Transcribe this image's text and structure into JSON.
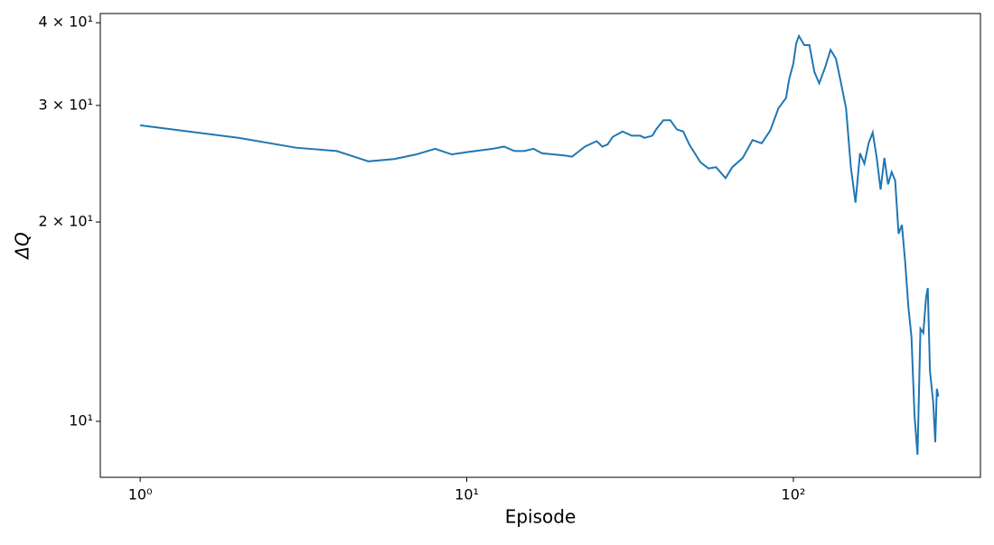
{
  "chart_data": {
    "type": "line",
    "xlabel": "Episode",
    "ylabel": "ΔQ",
    "xscale": "log",
    "yscale": "log",
    "xlim": [
      0.755,
      374
    ],
    "ylim": [
      8.23,
      41.3
    ],
    "xticks": [
      {
        "value": 1,
        "label": "10⁰"
      },
      {
        "value": 10,
        "label": "10¹"
      },
      {
        "value": 100,
        "label": "10²"
      }
    ],
    "yticks": [
      {
        "value": 10,
        "label": "10¹"
      },
      {
        "value": 20,
        "label": "2 × 10¹"
      },
      {
        "value": 30,
        "label": "3 × 10¹"
      },
      {
        "value": 40,
        "label": "4 × 10¹"
      }
    ],
    "x": [
      1,
      2,
      3,
      4,
      5,
      6,
      7,
      8,
      9,
      10,
      12,
      13,
      14,
      15,
      16,
      17,
      20,
      21,
      23,
      25,
      26,
      27,
      28,
      30,
      32,
      34,
      35,
      37,
      38,
      40,
      42,
      44,
      46,
      48,
      52,
      55,
      58,
      62,
      65,
      70,
      75,
      80,
      85,
      90,
      95,
      97,
      100,
      102,
      104,
      108,
      112,
      116,
      120,
      125,
      130,
      135,
      140,
      145,
      150,
      155,
      160,
      165,
      170,
      175,
      180,
      185,
      190,
      195,
      200,
      205,
      210,
      215,
      220,
      225,
      230,
      235,
      240,
      245,
      250,
      255,
      258,
      262,
      268,
      272,
      275,
      278
    ],
    "series": [
      {
        "color": "#1f77b4",
        "values": [
          28.0,
          26.8,
          25.9,
          25.6,
          24.7,
          24.9,
          25.3,
          25.8,
          25.3,
          25.5,
          25.8,
          26.0,
          25.6,
          25.6,
          25.8,
          25.4,
          25.2,
          25.1,
          26.0,
          26.5,
          26.0,
          26.2,
          26.9,
          27.4,
          27.0,
          27.0,
          26.8,
          27.0,
          27.6,
          28.5,
          28.5,
          27.6,
          27.4,
          26.2,
          24.6,
          24.1,
          24.2,
          23.3,
          24.2,
          25.0,
          26.6,
          26.3,
          27.5,
          29.7,
          30.8,
          32.8,
          34.7,
          37.2,
          38.2,
          37.0,
          37.0,
          33.7,
          32.4,
          34.2,
          36.4,
          35.3,
          32.4,
          29.7,
          24.2,
          21.4,
          25.4,
          24.5,
          26.3,
          27.3,
          25.0,
          22.4,
          25.0,
          22.8,
          23.8,
          23.1,
          19.2,
          19.8,
          17.4,
          14.9,
          13.4,
          10.2,
          8.9,
          13.8,
          13.6,
          15.4,
          15.9,
          11.9,
          10.7,
          9.3,
          11.2,
          10.9
        ]
      }
    ]
  }
}
